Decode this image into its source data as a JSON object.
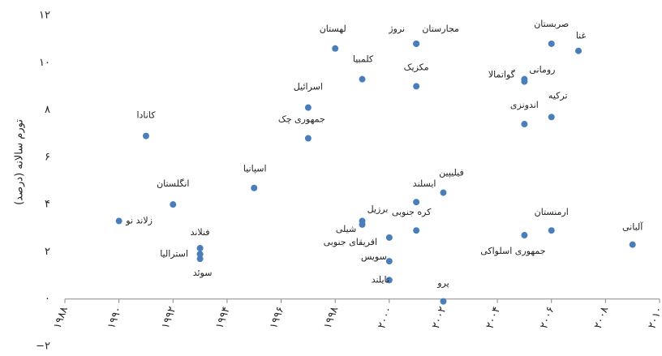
{
  "chart_data": {
    "type": "scatter",
    "y_label": "تورم سالانه (درصد)",
    "color": "#4a7ebb",
    "xlim": [
      1988,
      2010
    ],
    "ylim": [
      -2,
      12
    ],
    "xticks": [
      {
        "value": 1988,
        "label": "۱۹۸۸"
      },
      {
        "value": 1990,
        "label": "۱۹۹۰"
      },
      {
        "value": 1992,
        "label": "۱۹۹۲"
      },
      {
        "value": 1994,
        "label": "۱۹۹۴"
      },
      {
        "value": 1996,
        "label": "۱۹۹۶"
      },
      {
        "value": 1998,
        "label": "۱۹۹۸"
      },
      {
        "value": 2000,
        "label": "۲۰۰۰"
      },
      {
        "value": 2002,
        "label": "۲۰۰۲"
      },
      {
        "value": 2004,
        "label": "۲۰۰۴"
      },
      {
        "value": 2006,
        "label": "۲۰۰۶"
      },
      {
        "value": 2008,
        "label": "۲۰۰۸"
      },
      {
        "value": 2010,
        "label": "۲۰۱۰"
      }
    ],
    "yticks": [
      {
        "value": -2,
        "label": "−۲"
      },
      {
        "value": 0,
        "label": "۰"
      },
      {
        "value": 2,
        "label": "۲"
      },
      {
        "value": 4,
        "label": "۴"
      },
      {
        "value": 6,
        "label": "۶"
      },
      {
        "value": 8,
        "label": "۸"
      },
      {
        "value": 10,
        "label": "۱۰"
      },
      {
        "value": 12,
        "label": "۱۲"
      }
    ],
    "point_labels": [
      "زلاند نو",
      "کانادا",
      "انگلستان",
      "فنلاند",
      "استرالیا",
      "سوئد",
      "اسپانیا",
      "جمهوری چک",
      "اسرائیل",
      "لهستان",
      "کلمبیا",
      "برزیل",
      "شیلی",
      "افریقای جنوبی",
      "سویس",
      "تایلند",
      "نروژ",
      "مجارستان",
      "مکزیک",
      "ایسلند",
      "کره جنوبی",
      "فیلیپین",
      "پرو",
      "صربستان",
      "غنا",
      "رومانی",
      "گواتمالا",
      "ترکیه",
      "اندونزی",
      "ارمنستان",
      "جمهوری اسلواکی",
      "آلبانی"
    ],
    "x": [
      1990,
      1991,
      1992,
      1993,
      1993,
      1993,
      1995,
      1997,
      1997,
      1998,
      1999,
      1999,
      1999,
      2000,
      2000,
      2000,
      2001,
      2001,
      2001,
      2001,
      2001,
      2002,
      2002,
      2006,
      2007,
      2005,
      2005,
      2006,
      2005,
      2006,
      2005,
      2009
    ],
    "values": [
      3.3,
      6.9,
      4.0,
      2.15,
      1.9,
      1.7,
      4.7,
      6.8,
      8.1,
      10.6,
      9.3,
      3.3,
      3.15,
      2.6,
      1.6,
      0.8,
      10.8,
      10.8,
      9.0,
      4.1,
      2.9,
      4.5,
      -0.1,
      10.8,
      10.5,
      9.3,
      9.2,
      7.7,
      7.4,
      2.9,
      2.7,
      2.3
    ]
  }
}
